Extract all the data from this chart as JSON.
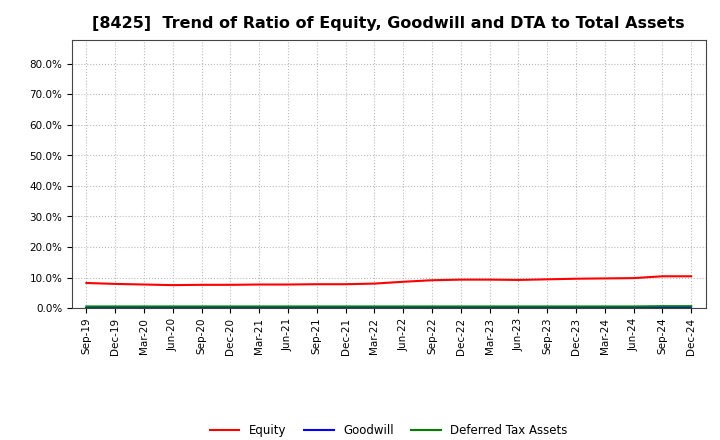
{
  "title": "[8425]  Trend of Ratio of Equity, Goodwill and DTA to Total Assets",
  "x_labels": [
    "Sep-19",
    "Dec-19",
    "Mar-20",
    "Jun-20",
    "Sep-20",
    "Dec-20",
    "Mar-21",
    "Jun-21",
    "Sep-21",
    "Dec-21",
    "Mar-22",
    "Jun-22",
    "Sep-22",
    "Dec-22",
    "Mar-23",
    "Jun-23",
    "Sep-23",
    "Dec-23",
    "Mar-24",
    "Jun-24",
    "Sep-24",
    "Dec-24"
  ],
  "equity": [
    0.082,
    0.079,
    0.077,
    0.075,
    0.076,
    0.076,
    0.077,
    0.077,
    0.078,
    0.078,
    0.08,
    0.086,
    0.091,
    0.093,
    0.093,
    0.092,
    0.094,
    0.096,
    0.097,
    0.098,
    0.104,
    0.104
  ],
  "goodwill": [
    0.0,
    0.0,
    0.0,
    0.0,
    0.0,
    0.0,
    0.0,
    0.0,
    0.0,
    0.0,
    0.0,
    0.0,
    0.0,
    0.0,
    0.0,
    0.0,
    0.0,
    0.0,
    0.0,
    0.0,
    0.0,
    0.0
  ],
  "dta": [
    0.005,
    0.005,
    0.005,
    0.005,
    0.005,
    0.005,
    0.005,
    0.005,
    0.005,
    0.005,
    0.005,
    0.005,
    0.005,
    0.005,
    0.005,
    0.005,
    0.005,
    0.005,
    0.005,
    0.005,
    0.006,
    0.006
  ],
  "equity_color": "#FF0000",
  "goodwill_color": "#0000FF",
  "dta_color": "#008000",
  "ylim_min": 0.0,
  "ylim_max": 0.88,
  "yticks": [
    0.0,
    0.1,
    0.2,
    0.3,
    0.4,
    0.5,
    0.6,
    0.7,
    0.8
  ],
  "bg_color": "#FFFFFF",
  "plot_bg_color": "#FFFFFF",
  "grid_color": "#BBBBBB",
  "legend_labels": [
    "Equity",
    "Goodwill",
    "Deferred Tax Assets"
  ],
  "title_fontsize": 11.5,
  "tick_fontsize": 7.5,
  "legend_fontsize": 8.5,
  "spine_color": "#444444"
}
